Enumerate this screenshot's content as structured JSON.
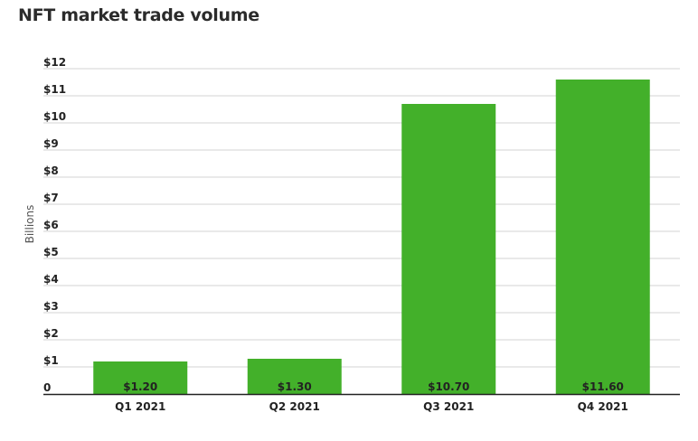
{
  "chart_data": {
    "type": "bar",
    "title": "NFT market trade volume",
    "ylabel": "Billions",
    "xlabel": "",
    "categories": [
      "Q1 2021",
      "Q2 2021",
      "Q3 2021",
      "Q4 2021"
    ],
    "values": [
      1.2,
      1.3,
      10.7,
      11.6
    ],
    "data_labels": [
      "$1.20",
      "$1.30",
      "$10.70",
      "$11.60"
    ],
    "ylim": [
      0,
      12
    ],
    "yticks": [
      0,
      1,
      2,
      3,
      4,
      5,
      6,
      7,
      8,
      9,
      10,
      11,
      12
    ],
    "ytick_labels": [
      "0",
      "$1",
      "$2",
      "$3",
      "$4",
      "$5",
      "$6",
      "$7",
      "$8",
      "$9",
      "$10",
      "$11",
      "$12"
    ],
    "grid": true,
    "legend": "none",
    "bar_color": "#43b02a",
    "grid_color": "#d3d3d3",
    "axis_color": "#222222"
  }
}
